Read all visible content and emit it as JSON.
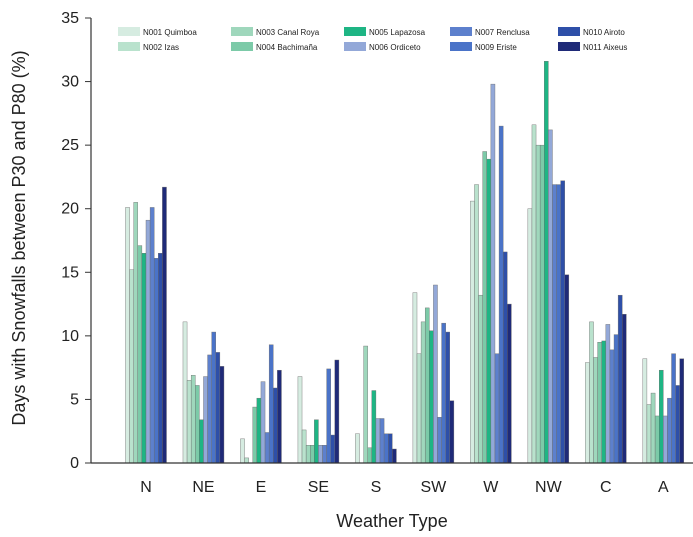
{
  "chart_data": {
    "type": "bar",
    "xlabel": "Weather Type",
    "ylabel": "Days with Snowfalls between P30 and P80 (%)",
    "ylim": [
      0,
      35
    ],
    "yticks": [
      0,
      5,
      10,
      15,
      20,
      25,
      30,
      35
    ],
    "grid": false,
    "legend_position": "top",
    "categories": [
      "N",
      "NE",
      "E",
      "SE",
      "S",
      "SW",
      "W",
      "NW",
      "C",
      "A"
    ],
    "series": [
      {
        "name": "N001 Quimboa",
        "color": "#d6ece1",
        "values": [
          20.1,
          11.1,
          1.9,
          6.8,
          2.3,
          13.4,
          20.6,
          20.0,
          7.9,
          8.2
        ]
      },
      {
        "name": "N002 Izas",
        "color": "#b9e2cd",
        "values": [
          15.2,
          6.5,
          0.4,
          2.6,
          0.0,
          8.6,
          21.9,
          26.6,
          11.1,
          4.6
        ]
      },
      {
        "name": "N003 Canal Roya",
        "color": "#9fd7bc",
        "values": [
          20.5,
          6.9,
          0.0,
          1.4,
          9.2,
          11.1,
          13.2,
          25.0,
          8.3,
          5.5
        ]
      },
      {
        "name": "N004 Bachimaña",
        "color": "#7ccaa8",
        "values": [
          17.1,
          6.1,
          4.4,
          1.4,
          1.2,
          12.2,
          24.5,
          25.0,
          9.5,
          3.7
        ]
      },
      {
        "name": "N005 Lapazosa",
        "color": "#1eb584",
        "values": [
          16.5,
          3.4,
          5.1,
          3.4,
          5.7,
          10.4,
          23.9,
          31.6,
          9.6,
          7.3
        ]
      },
      {
        "name": "N006 Ordiceto",
        "color": "#93a8d8",
        "values": [
          19.1,
          6.8,
          6.4,
          1.4,
          3.5,
          14.0,
          29.8,
          26.2,
          10.9,
          3.7
        ]
      },
      {
        "name": "N007 Renclusa",
        "color": "#5d80cd",
        "values": [
          20.1,
          8.5,
          2.4,
          1.4,
          3.5,
          3.6,
          8.6,
          21.9,
          8.9,
          5.1
        ]
      },
      {
        "name": "N009 Eriste",
        "color": "#4a73c8",
        "values": [
          16.1,
          10.3,
          9.3,
          7.4,
          2.3,
          11.0,
          26.5,
          21.9,
          10.1,
          8.6
        ]
      },
      {
        "name": "N010 Airoto",
        "color": "#2e4fa8",
        "values": [
          16.5,
          8.7,
          5.9,
          2.2,
          2.3,
          10.3,
          16.6,
          22.2,
          13.2,
          6.1
        ]
      },
      {
        "name": "N011 Aixeus",
        "color": "#1f2a78",
        "values": [
          21.7,
          7.6,
          7.3,
          8.1,
          1.1,
          4.9,
          12.5,
          14.8,
          11.7,
          8.2
        ]
      }
    ]
  }
}
